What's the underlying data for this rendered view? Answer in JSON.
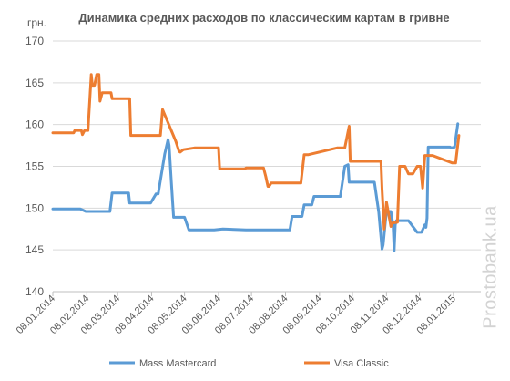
{
  "chart_data": {
    "type": "line",
    "title": "Динамика средних расходов по классическим картам в гривне",
    "ylabel": "грн.",
    "ylim": [
      140,
      170
    ],
    "y_ticks": [
      140,
      145,
      150,
      155,
      160,
      165,
      170
    ],
    "x_ticks": [
      "08.01.2014",
      "08.02.2014",
      "08.03.2014",
      "08.04.2014",
      "08.05.2014",
      "08.06.2014",
      "08.07.2014",
      "08.08.2014",
      "08.09.2014",
      "08.10.2014",
      "08.11.2014",
      "08.12.2014",
      "08.01.2015"
    ],
    "grid": "horizontal",
    "legend_position": "bottom",
    "series": [
      {
        "name": "Mass Mastercard",
        "color": "#5b9bd5",
        "x": [
          "2014-01-08",
          "2014-02-02",
          "2014-02-07",
          "2014-03-01",
          "2014-03-03",
          "2014-03-18",
          "2014-03-19",
          "2014-04-05",
          "2014-04-07",
          "2014-04-12",
          "2014-04-14",
          "2014-04-20",
          "2014-04-23",
          "2014-04-24",
          "2014-04-26",
          "2014-04-28",
          "2014-05-08",
          "2014-05-12",
          "2014-06-04",
          "2014-06-12",
          "2014-07-03",
          "2014-08-12",
          "2014-08-14",
          "2014-08-23",
          "2014-08-25",
          "2014-09-01",
          "2014-09-03",
          "2014-09-27",
          "2014-10-01",
          "2014-10-04",
          "2014-10-05",
          "2014-10-28",
          "2014-11-01",
          "2014-11-04",
          "2014-11-05",
          "2014-11-07",
          "2014-11-08",
          "2014-11-12",
          "2014-11-14",
          "2014-11-15",
          "2014-11-16",
          "2014-11-17",
          "2014-11-28",
          "2014-12-06",
          "2014-12-08",
          "2014-12-10",
          "2014-12-13",
          "2014-12-14",
          "2014-12-15",
          "2014-12-16",
          "2015-01-05",
          "2015-01-06",
          "2015-01-09",
          "2015-01-12"
        ],
        "values": [
          149.9,
          149.9,
          149.6,
          149.6,
          151.8,
          151.8,
          150.6,
          150.6,
          150.6,
          151.7,
          151.7,
          156.5,
          158.2,
          157.5,
          153.0,
          148.9,
          148.9,
          147.4,
          147.4,
          147.5,
          147.4,
          147.4,
          149.0,
          149.0,
          150.4,
          150.4,
          151.4,
          151.4,
          155.0,
          155.2,
          153.1,
          153.1,
          149.5,
          145.1,
          145.6,
          148.4,
          149.6,
          149.6,
          148.0,
          144.9,
          148.0,
          148.5,
          148.5,
          147.1,
          147.1,
          147.1,
          148.0,
          147.7,
          148.8,
          157.3,
          157.3,
          157.2,
          157.3,
          160.1
        ]
      },
      {
        "name": "Visa Classic",
        "color": "#ed7d31",
        "x": [
          "2014-01-08",
          "2014-01-27",
          "2014-01-28",
          "2014-02-03",
          "2014-02-04",
          "2014-02-06",
          "2014-02-09",
          "2014-02-12",
          "2014-02-13",
          "2014-02-15",
          "2014-02-17",
          "2014-02-19",
          "2014-02-20",
          "2014-02-22",
          "2014-02-26",
          "2014-03-02",
          "2014-03-03",
          "2014-03-05",
          "2014-03-19",
          "2014-03-20",
          "2014-04-07",
          "2014-04-09",
          "2014-04-16",
          "2014-04-18",
          "2014-04-30",
          "2014-05-03",
          "2014-05-04",
          "2014-05-07",
          "2014-05-17",
          "2014-05-19",
          "2014-06-08",
          "2014-06-09",
          "2014-07-02",
          "2014-07-03",
          "2014-07-16",
          "2014-07-19",
          "2014-07-21",
          "2014-07-23",
          "2014-07-24",
          "2014-07-26",
          "2014-07-29",
          "2014-08-22",
          "2014-08-25",
          "2014-08-27",
          "2014-08-29",
          "2014-09-24",
          "2014-09-27",
          "2014-10-01",
          "2014-10-05",
          "2014-10-06",
          "2014-11-03",
          "2014-11-04",
          "2014-11-06",
          "2014-11-08",
          "2014-11-12",
          "2014-11-13",
          "2014-11-18",
          "2014-11-20",
          "2014-11-22",
          "2014-11-25",
          "2014-11-28",
          "2014-12-02",
          "2014-12-06",
          "2014-12-09",
          "2014-12-11",
          "2014-12-13",
          "2014-12-16",
          "2014-12-18",
          "2014-12-20",
          "2015-01-07",
          "2015-01-10",
          "2015-01-13"
        ],
        "values": [
          159.0,
          159.0,
          159.3,
          159.3,
          158.8,
          159.3,
          159.3,
          166.0,
          164.7,
          164.7,
          166.0,
          166.0,
          162.8,
          163.8,
          163.8,
          163.8,
          163.1,
          163.1,
          163.1,
          158.7,
          158.7,
          158.7,
          158.7,
          161.8,
          158.0,
          156.8,
          156.7,
          157.0,
          157.2,
          157.2,
          157.2,
          154.7,
          154.7,
          154.8,
          154.8,
          154.8,
          153.8,
          152.6,
          152.6,
          153.0,
          153.0,
          153.0,
          156.4,
          156.4,
          156.4,
          157.2,
          157.2,
          157.2,
          159.8,
          155.6,
          155.6,
          152.3,
          147.5,
          150.7,
          147.8,
          148.2,
          148.3,
          155.0,
          155.0,
          155.0,
          154.1,
          154.1,
          155.0,
          155.0,
          152.4,
          156.3,
          156.3,
          156.3,
          156.3,
          155.4,
          155.4,
          158.7
        ]
      }
    ]
  },
  "watermark": "Prostobank.ua"
}
